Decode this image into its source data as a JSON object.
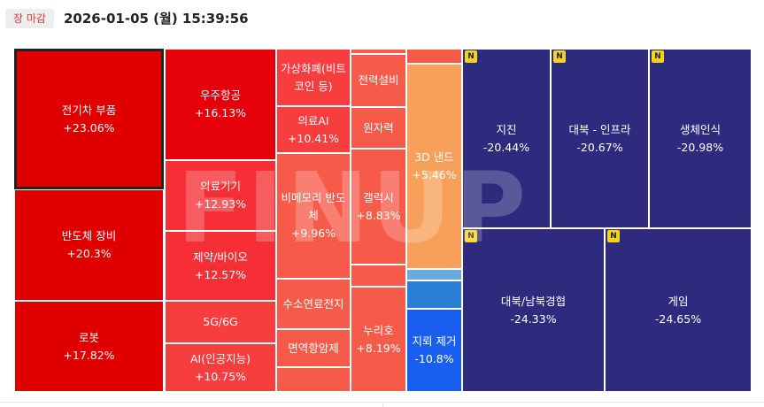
{
  "header": {
    "status_badge": "장 마감",
    "datetime": "2026-01-05 (월) 15:39:56"
  },
  "watermark": "FINUP",
  "colors": {
    "strong_up": "#e00000",
    "mid_up": "#f93b3b",
    "light_up": "#f65b4a",
    "orange": "#f7a05a",
    "light_blue": "#6aa9de",
    "mid_blue": "#2a7ed3",
    "blue": "#1a5ef0",
    "navy": "#2e2a7e",
    "badge_yellow": "#f6d21a"
  },
  "tiles": [
    {
      "name": "전기차 부품",
      "change": "+23.06%"
    },
    {
      "name": "반도체 장비",
      "change": "+20.3%"
    },
    {
      "name": "로봇",
      "change": "+17.82%"
    },
    {
      "name": "우주항공",
      "change": "+16.13%"
    },
    {
      "name": "의료기기",
      "change": "+12.93%"
    },
    {
      "name": "제약/바이오",
      "change": "+12.57%"
    },
    {
      "name": "5G/6G",
      "change": ""
    },
    {
      "name": "AI(인공지능)",
      "change": "+10.75%"
    },
    {
      "name": "가상화폐(비트코인 등)",
      "change": ""
    },
    {
      "name": "의료AI",
      "change": "+10.41%"
    },
    {
      "name": "비메모리 반도체",
      "change": "+9.96%"
    },
    {
      "name": "수소연료전지",
      "change": ""
    },
    {
      "name": "면역항암제",
      "change": ""
    },
    {
      "name": "전력설비",
      "change": ""
    },
    {
      "name": "원자력",
      "change": ""
    },
    {
      "name": "갤럭시",
      "change": "+8.83%"
    },
    {
      "name": "누리호",
      "change": "+8.19%"
    },
    {
      "name": "3D 낸드",
      "change": "+5.46%"
    },
    {
      "name": "지뢰 제거",
      "change": "-10.8%"
    },
    {
      "name": "지진",
      "change": "-20.44%"
    },
    {
      "name": "대북 - 인프라",
      "change": "-20.67%"
    },
    {
      "name": "생체인식",
      "change": "-20.98%"
    },
    {
      "name": "대북/남북경협",
      "change": "-24.33%"
    },
    {
      "name": "게임",
      "change": "-24.65%"
    }
  ],
  "new_badge": "N"
}
